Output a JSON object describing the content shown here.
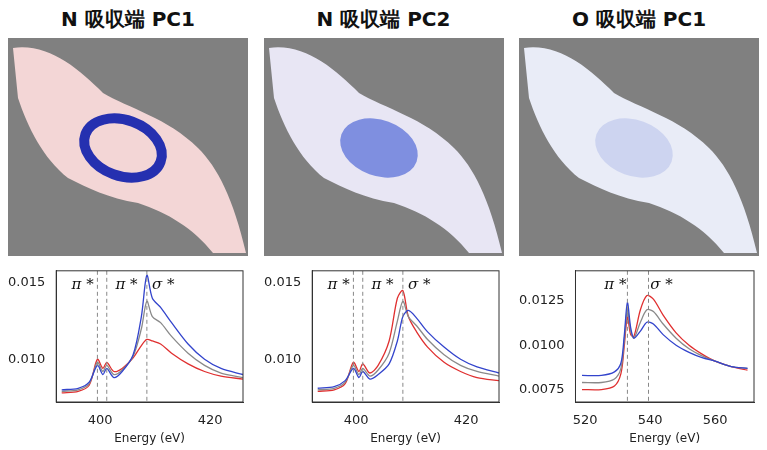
{
  "chart_data": [
    {
      "type": "line",
      "title": "N 吸収端 PC1",
      "xlabel": "Energy (eV)",
      "grid": false,
      "x": [
        393,
        396,
        398,
        399.5,
        400.5,
        401.2,
        402.5,
        404,
        406,
        407.5,
        408.5,
        409.5,
        411,
        413,
        416,
        419,
        422,
        426
      ],
      "series": [
        {
          "color": "#3344cc",
          "values": [
            0.008,
            0.0081,
            0.0085,
            0.0096,
            0.009,
            0.0094,
            0.0088,
            0.0092,
            0.0103,
            0.0128,
            0.0155,
            0.014,
            0.0134,
            0.0124,
            0.011,
            0.01,
            0.0094,
            0.009
          ]
        },
        {
          "color": "#8a8a8a",
          "values": [
            0.0079,
            0.008,
            0.0084,
            0.0098,
            0.0092,
            0.0096,
            0.009,
            0.0093,
            0.0102,
            0.012,
            0.0138,
            0.0128,
            0.0124,
            0.0115,
            0.0104,
            0.0096,
            0.0091,
            0.0088
          ]
        },
        {
          "color": "#e03030",
          "values": [
            0.0078,
            0.0079,
            0.0083,
            0.01,
            0.0094,
            0.0098,
            0.0092,
            0.0094,
            0.0101,
            0.0109,
            0.0113,
            0.0112,
            0.011,
            0.0104,
            0.0097,
            0.0092,
            0.0089,
            0.0087
          ]
        }
      ],
      "xlim": [
        392,
        426
      ],
      "xticks": [
        400,
        420
      ],
      "ylim": [
        0.0072,
        0.0158
      ],
      "yticks": [
        {
          "value": 0.01,
          "label": "0.010"
        },
        {
          "value": 0.015,
          "label": "0.015"
        }
      ],
      "vlines": [
        399.5,
        401.2,
        408.5
      ],
      "annotations": [
        {
          "text": "π *",
          "x": 396.8
        },
        {
          "text": "π *",
          "x": 404.8
        },
        {
          "text": "σ *",
          "x": 411.5
        }
      ]
    },
    {
      "type": "line",
      "title": "N 吸収端 PC2",
      "xlabel": "Energy (eV)",
      "grid": false,
      "x": [
        393,
        396,
        398,
        399.5,
        400.5,
        401.2,
        402.5,
        404,
        406,
        407.5,
        408.5,
        409.5,
        411,
        413,
        416,
        419,
        422,
        426
      ],
      "series": [
        {
          "color": "#3344cc",
          "values": [
            0.0081,
            0.0082,
            0.0086,
            0.0094,
            0.0088,
            0.0092,
            0.0087,
            0.009,
            0.0097,
            0.0112,
            0.0128,
            0.0132,
            0.0127,
            0.0118,
            0.0108,
            0.01,
            0.0095,
            0.0091
          ]
        },
        {
          "color": "#8a8a8a",
          "values": [
            0.008,
            0.0081,
            0.0085,
            0.0096,
            0.009,
            0.0094,
            0.0089,
            0.0093,
            0.0104,
            0.0125,
            0.0138,
            0.0128,
            0.0122,
            0.0113,
            0.0103,
            0.0096,
            0.0092,
            0.0089
          ]
        },
        {
          "color": "#e03030",
          "values": [
            0.0079,
            0.008,
            0.0084,
            0.0098,
            0.0092,
            0.0097,
            0.0091,
            0.0096,
            0.0112,
            0.014,
            0.0145,
            0.0128,
            0.0118,
            0.0108,
            0.0098,
            0.0092,
            0.0088,
            0.0086
          ]
        }
      ],
      "xlim": [
        392,
        426
      ],
      "xticks": [
        400,
        420
      ],
      "ylim": [
        0.0072,
        0.0158
      ],
      "yticks": [
        {
          "value": 0.01,
          "label": "0.010"
        },
        {
          "value": 0.015,
          "label": "0.015"
        }
      ],
      "vlines": [
        399.5,
        401.2,
        408.5
      ],
      "annotations": [
        {
          "text": "π *",
          "x": 396.8
        },
        {
          "text": "π *",
          "x": 404.8
        },
        {
          "text": "σ *",
          "x": 411.5
        }
      ]
    },
    {
      "type": "line",
      "title": "O 吸収端 PC1",
      "xlabel": "Energy (eV)",
      "grid": false,
      "x": [
        519,
        525,
        529,
        531,
        532,
        533,
        534,
        535,
        537,
        539,
        541,
        544,
        548,
        552,
        556,
        560,
        565,
        570
      ],
      "series": [
        {
          "color": "#3344cc",
          "values": [
            0.0083,
            0.0083,
            0.0085,
            0.009,
            0.0105,
            0.0124,
            0.011,
            0.0104,
            0.0108,
            0.0113,
            0.0112,
            0.0106,
            0.01,
            0.0096,
            0.0093,
            0.0091,
            0.0088,
            0.0087
          ]
        },
        {
          "color": "#8a8a8a",
          "values": [
            0.0079,
            0.0079,
            0.0081,
            0.0087,
            0.0102,
            0.012,
            0.0108,
            0.0104,
            0.0113,
            0.012,
            0.0119,
            0.0112,
            0.0104,
            0.0098,
            0.0094,
            0.0091,
            0.0088,
            0.0087
          ]
        },
        {
          "color": "#e03030",
          "values": [
            0.0075,
            0.0075,
            0.0077,
            0.0084,
            0.0099,
            0.0116,
            0.0106,
            0.0105,
            0.012,
            0.0128,
            0.0126,
            0.0117,
            0.0107,
            0.01,
            0.0095,
            0.0091,
            0.0088,
            0.0086
          ]
        }
      ],
      "xlim": [
        517,
        572
      ],
      "xticks": [
        520,
        540,
        560
      ],
      "ylim": [
        0.0068,
        0.0142
      ],
      "yticks": [
        {
          "value": 0.0075,
          "label": "0.0075"
        },
        {
          "value": 0.01,
          "label": "0.0100"
        },
        {
          "value": 0.0125,
          "label": "0.0125"
        }
      ],
      "vlines": [
        533,
        539.5
      ],
      "annotations": [
        {
          "text": "π *",
          "x": 529.3
        },
        {
          "text": "σ *",
          "x": 543.5
        }
      ]
    }
  ]
}
